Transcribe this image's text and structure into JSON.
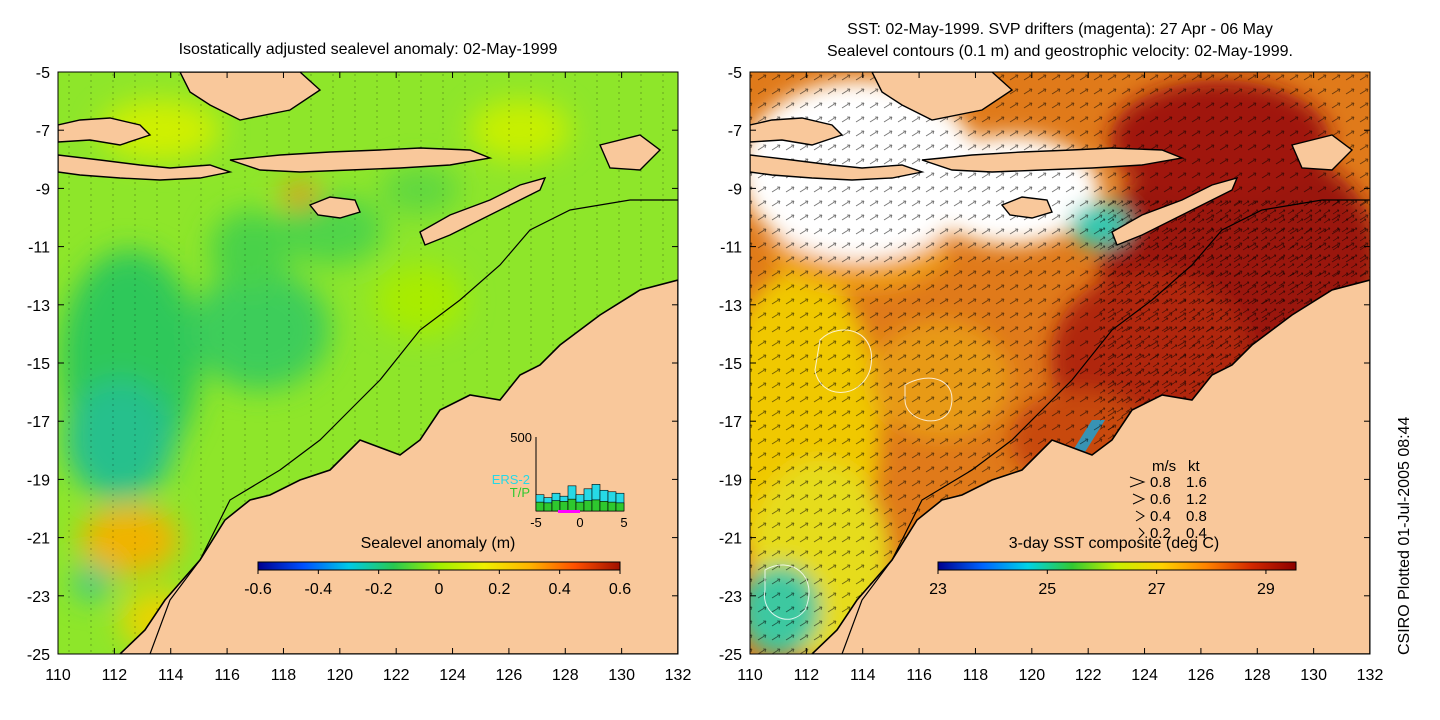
{
  "left_panel": {
    "title": "Isostatically adjusted sealevel anomaly: 02-May-1999",
    "colorbar_label": "Sealevel anomaly (m)",
    "colorbar_ticks": [
      "-0.6",
      "-0.4",
      "-0.2",
      "0",
      "0.2",
      "0.4",
      "0.6"
    ],
    "colorbar_colors": [
      "#00008f",
      "#0050ff",
      "#00c8e6",
      "#28c850",
      "#a0f000",
      "#f0f000",
      "#ffb400",
      "#ff5000",
      "#a01000"
    ],
    "inset": {
      "y_tick": "500",
      "x_ticks": [
        "-5",
        "0",
        "5"
      ],
      "legend": [
        {
          "label": "ERS-2",
          "color": "#26d9e6"
        },
        {
          "label": "T/P",
          "color": "#2ec82e"
        }
      ],
      "bars_ers2": [
        110,
        90,
        120,
        100,
        170,
        110,
        150,
        180,
        140,
        130,
        120
      ],
      "bars_tp": [
        60,
        55,
        70,
        65,
        80,
        60,
        70,
        75,
        65,
        60,
        55
      ]
    }
  },
  "right_panel": {
    "title_line1": "SST: 02-May-1999. SVP drifters (magenta): 27 Apr - 06 May",
    "title_line2": "Sealevel contours (0.1 m) and geostrophic velocity: 02-May-1999.",
    "colorbar_label": "3-day SST composite (deg C)",
    "colorbar_ticks": [
      "23",
      "25",
      "27",
      "29"
    ],
    "colorbar_colors": [
      "#00008f",
      "#0064ff",
      "#00d2e6",
      "#32c832",
      "#c8f000",
      "#ffd200",
      "#ff8200",
      "#d22800",
      "#8c0000"
    ],
    "velocity_legend": {
      "header_ms": "m/s",
      "header_kt": "kt",
      "rows": [
        {
          "ms": "0.8",
          "kt": "1.6"
        },
        {
          "ms": "0.6",
          "kt": "1.2"
        },
        {
          "ms": "0.4",
          "kt": "0.8"
        },
        {
          "ms": "0.2",
          "kt": "0.4"
        }
      ]
    }
  },
  "axes": {
    "x_ticks": [
      "110",
      "112",
      "114",
      "116",
      "118",
      "120",
      "122",
      "124",
      "126",
      "128",
      "130",
      "132"
    ],
    "y_ticks": [
      "-5",
      "-7",
      "-9",
      "-11",
      "-13",
      "-15",
      "-17",
      "-19",
      "-21",
      "-23",
      "-25"
    ],
    "x_range": [
      110,
      132
    ],
    "y_range": [
      -25,
      -5
    ]
  },
  "credit": "CSIRO Plotted 01-Jul-2005 08:44",
  "colors": {
    "land": "#f9c89b",
    "sla_base": "#8ee62a",
    "sst_base": "#e07a1a",
    "cloud": "#ffffff"
  }
}
